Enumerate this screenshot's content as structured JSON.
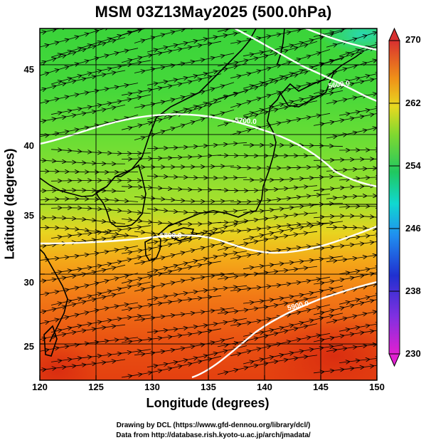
{
  "title": "MSM 03Z13May2025 (500.0hPa)",
  "axes": {
    "xlabel": "Longitude (degrees)",
    "ylabel": "Latitude  (degrees)",
    "xticks": [
      "120",
      "125",
      "130",
      "135",
      "140",
      "145",
      "150"
    ],
    "yticks": [
      "25",
      "30",
      "35",
      "40",
      "45"
    ],
    "xlim": [
      120,
      150
    ],
    "ylim": [
      22.4,
      47.6
    ]
  },
  "colorbar": {
    "ticks": [
      "270",
      "262",
      "254",
      "246",
      "238",
      "230"
    ],
    "range": [
      230,
      270
    ],
    "colors": [
      "#e020d0",
      "#2020d0",
      "#20a0f0",
      "#10e0c0",
      "#20c860",
      "#9ad830",
      "#f0d020",
      "#f08010",
      "#e03010",
      "#d83030"
    ]
  },
  "contours": {
    "labels": [
      "5600.0",
      "5700.0",
      "5800.0",
      "5900.0"
    ]
  },
  "footer": {
    "line1": "Drawing by DCL (https://www.gfd-dennou.org/library/dcl/)",
    "line2": "Data from http://database.rish.kyoto-u.ac.jp/arch/jmadata/"
  }
}
